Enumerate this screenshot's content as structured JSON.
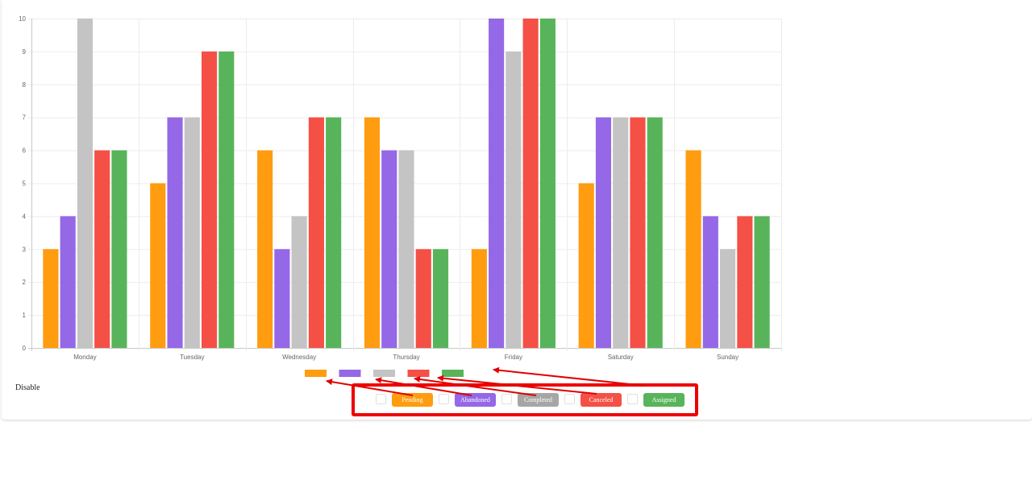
{
  "chart_data": {
    "type": "bar",
    "categories": [
      "Monday",
      "Tuesday",
      "Wednesday",
      "Thursday",
      "Friday",
      "Saturday",
      "Sunday"
    ],
    "series": [
      {
        "name": "Pending",
        "color": "#ff9c0f",
        "values": [
          3,
          5,
          6,
          7,
          3,
          5,
          6
        ]
      },
      {
        "name": "Abandoned",
        "color": "#9468e6",
        "values": [
          4,
          7,
          3,
          6,
          10,
          7,
          4
        ]
      },
      {
        "name": "Completed",
        "color": "#c4c4c4",
        "values": [
          10,
          7,
          4,
          6,
          9,
          7,
          3
        ]
      },
      {
        "name": "Canceled",
        "color": "#f55046",
        "values": [
          6,
          9,
          7,
          3,
          10,
          7,
          4
        ]
      },
      {
        "name": "Assigned",
        "color": "#58b45a",
        "values": [
          6,
          9,
          7,
          3,
          10,
          7,
          4
        ]
      }
    ],
    "yticks": [
      0,
      1,
      2,
      3,
      4,
      5,
      6,
      7,
      8,
      9,
      10
    ],
    "ylim": [
      0,
      10
    ],
    "grid": true,
    "legend": "bottom, color swatches without labels"
  },
  "controls": {
    "disable_label": "Disable",
    "toggles": [
      {
        "label": "Pending",
        "color": "#ff9c0f"
      },
      {
        "label": "Abandoned",
        "color": "#9468e6"
      },
      {
        "label": "Completed",
        "color": "#a6a6a6"
      },
      {
        "label": "Canceled",
        "color": "#f55046"
      },
      {
        "label": "Assigned",
        "color": "#58b45a"
      }
    ],
    "highlight_color": "#ee0000"
  }
}
